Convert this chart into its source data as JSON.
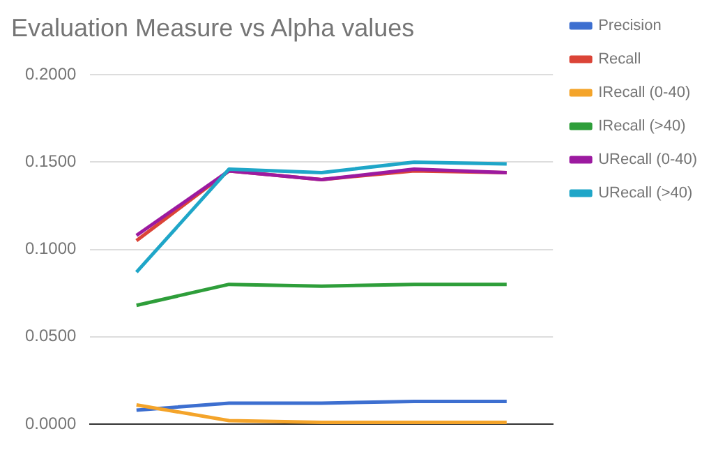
{
  "chart_data": {
    "type": "line",
    "title": "Evaluation Measure vs Alpha values",
    "categories": [
      null,
      null,
      null,
      null,
      null
    ],
    "series": [
      {
        "name": "Precision",
        "color": "#3d6fd0",
        "values": [
          0.008,
          0.012,
          0.012,
          0.013,
          0.013
        ]
      },
      {
        "name": "Recall",
        "color": "#db4437",
        "values": [
          0.105,
          0.145,
          0.14,
          0.145,
          0.144
        ]
      },
      {
        "name": "IRecall (0-40)",
        "color": "#f4a42a",
        "values": [
          0.011,
          0.002,
          0.001,
          0.001,
          0.001
        ]
      },
      {
        "name": "IRecall (>40)",
        "color": "#2e9e3a",
        "values": [
          0.068,
          0.08,
          0.079,
          0.08,
          0.08
        ]
      },
      {
        "name": "URecall (0-40)",
        "color": "#9c1aa0",
        "values": [
          0.108,
          0.145,
          0.14,
          0.146,
          0.144
        ]
      },
      {
        "name": "URecall (>40)",
        "color": "#1fa6c8",
        "values": [
          0.087,
          0.146,
          0.144,
          0.15,
          0.149
        ]
      }
    ],
    "ylim": [
      0,
      0.2
    ],
    "yticks": [
      {
        "value": 0,
        "label": "0.0000"
      },
      {
        "value": 0.05,
        "label": "0.0500"
      },
      {
        "value": 0.1,
        "label": "0.1000"
      },
      {
        "value": 0.15,
        "label": "0.1500"
      },
      {
        "value": 0.2,
        "label": "0.2000"
      }
    ],
    "grid": "y",
    "legend": "right",
    "marker": "none",
    "line_style": "solid",
    "tick_labels": "y"
  }
}
